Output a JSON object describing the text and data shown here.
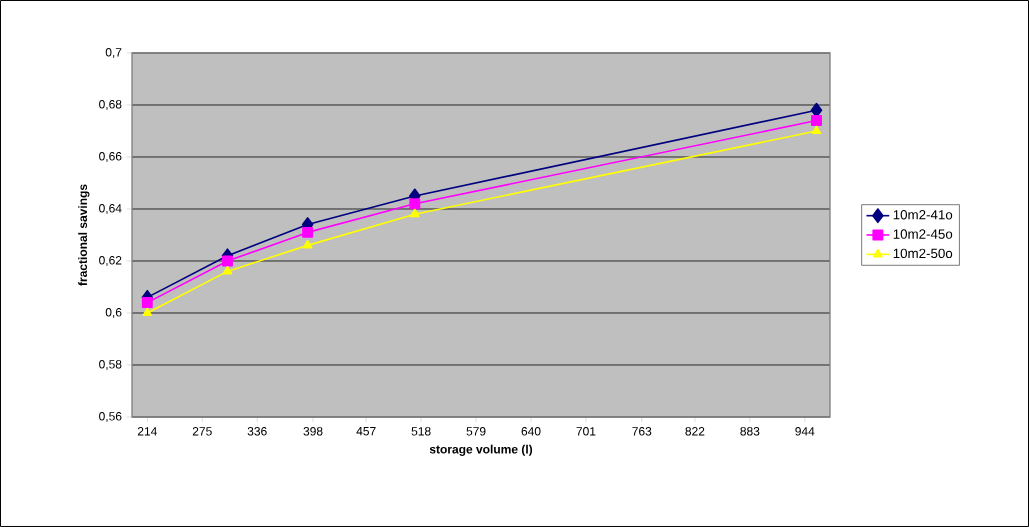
{
  "chart_data": {
    "type": "line",
    "xlabel": "storage volume (l)",
    "ylabel": "fractional savings",
    "x": [
      214,
      303,
      392,
      511,
      957
    ],
    "series": [
      {
        "name": "10m2-41o",
        "color": "#000080",
        "marker": "diamond",
        "values": [
          0.606,
          0.622,
          0.634,
          0.645,
          0.678
        ]
      },
      {
        "name": "10m2-45o",
        "color": "#ff00ff",
        "marker": "square",
        "values": [
          0.604,
          0.62,
          0.631,
          0.642,
          0.674
        ]
      },
      {
        "name": "10m2-50o",
        "color": "#ffff00",
        "marker": "triangle",
        "values": [
          0.6,
          0.616,
          0.626,
          0.638,
          0.67
        ]
      }
    ],
    "xlim": [
      197,
      972
    ],
    "xticks": [
      214,
      275,
      336,
      398,
      457,
      518,
      579,
      640,
      701,
      763,
      822,
      883,
      944
    ],
    "ylim": [
      0.56,
      0.7
    ],
    "yticks": [
      {
        "value": 0.56,
        "label": "0,56"
      },
      {
        "value": 0.58,
        "label": "0,58"
      },
      {
        "value": 0.6,
        "label": "0,6"
      },
      {
        "value": 0.62,
        "label": "0,62"
      },
      {
        "value": 0.64,
        "label": "0,64"
      },
      {
        "value": 0.66,
        "label": "0,66"
      },
      {
        "value": 0.68,
        "label": "0,68"
      },
      {
        "value": 0.7,
        "label": "0,7"
      }
    ],
    "grid": "y",
    "legend": "right",
    "line_style": "solid"
  }
}
